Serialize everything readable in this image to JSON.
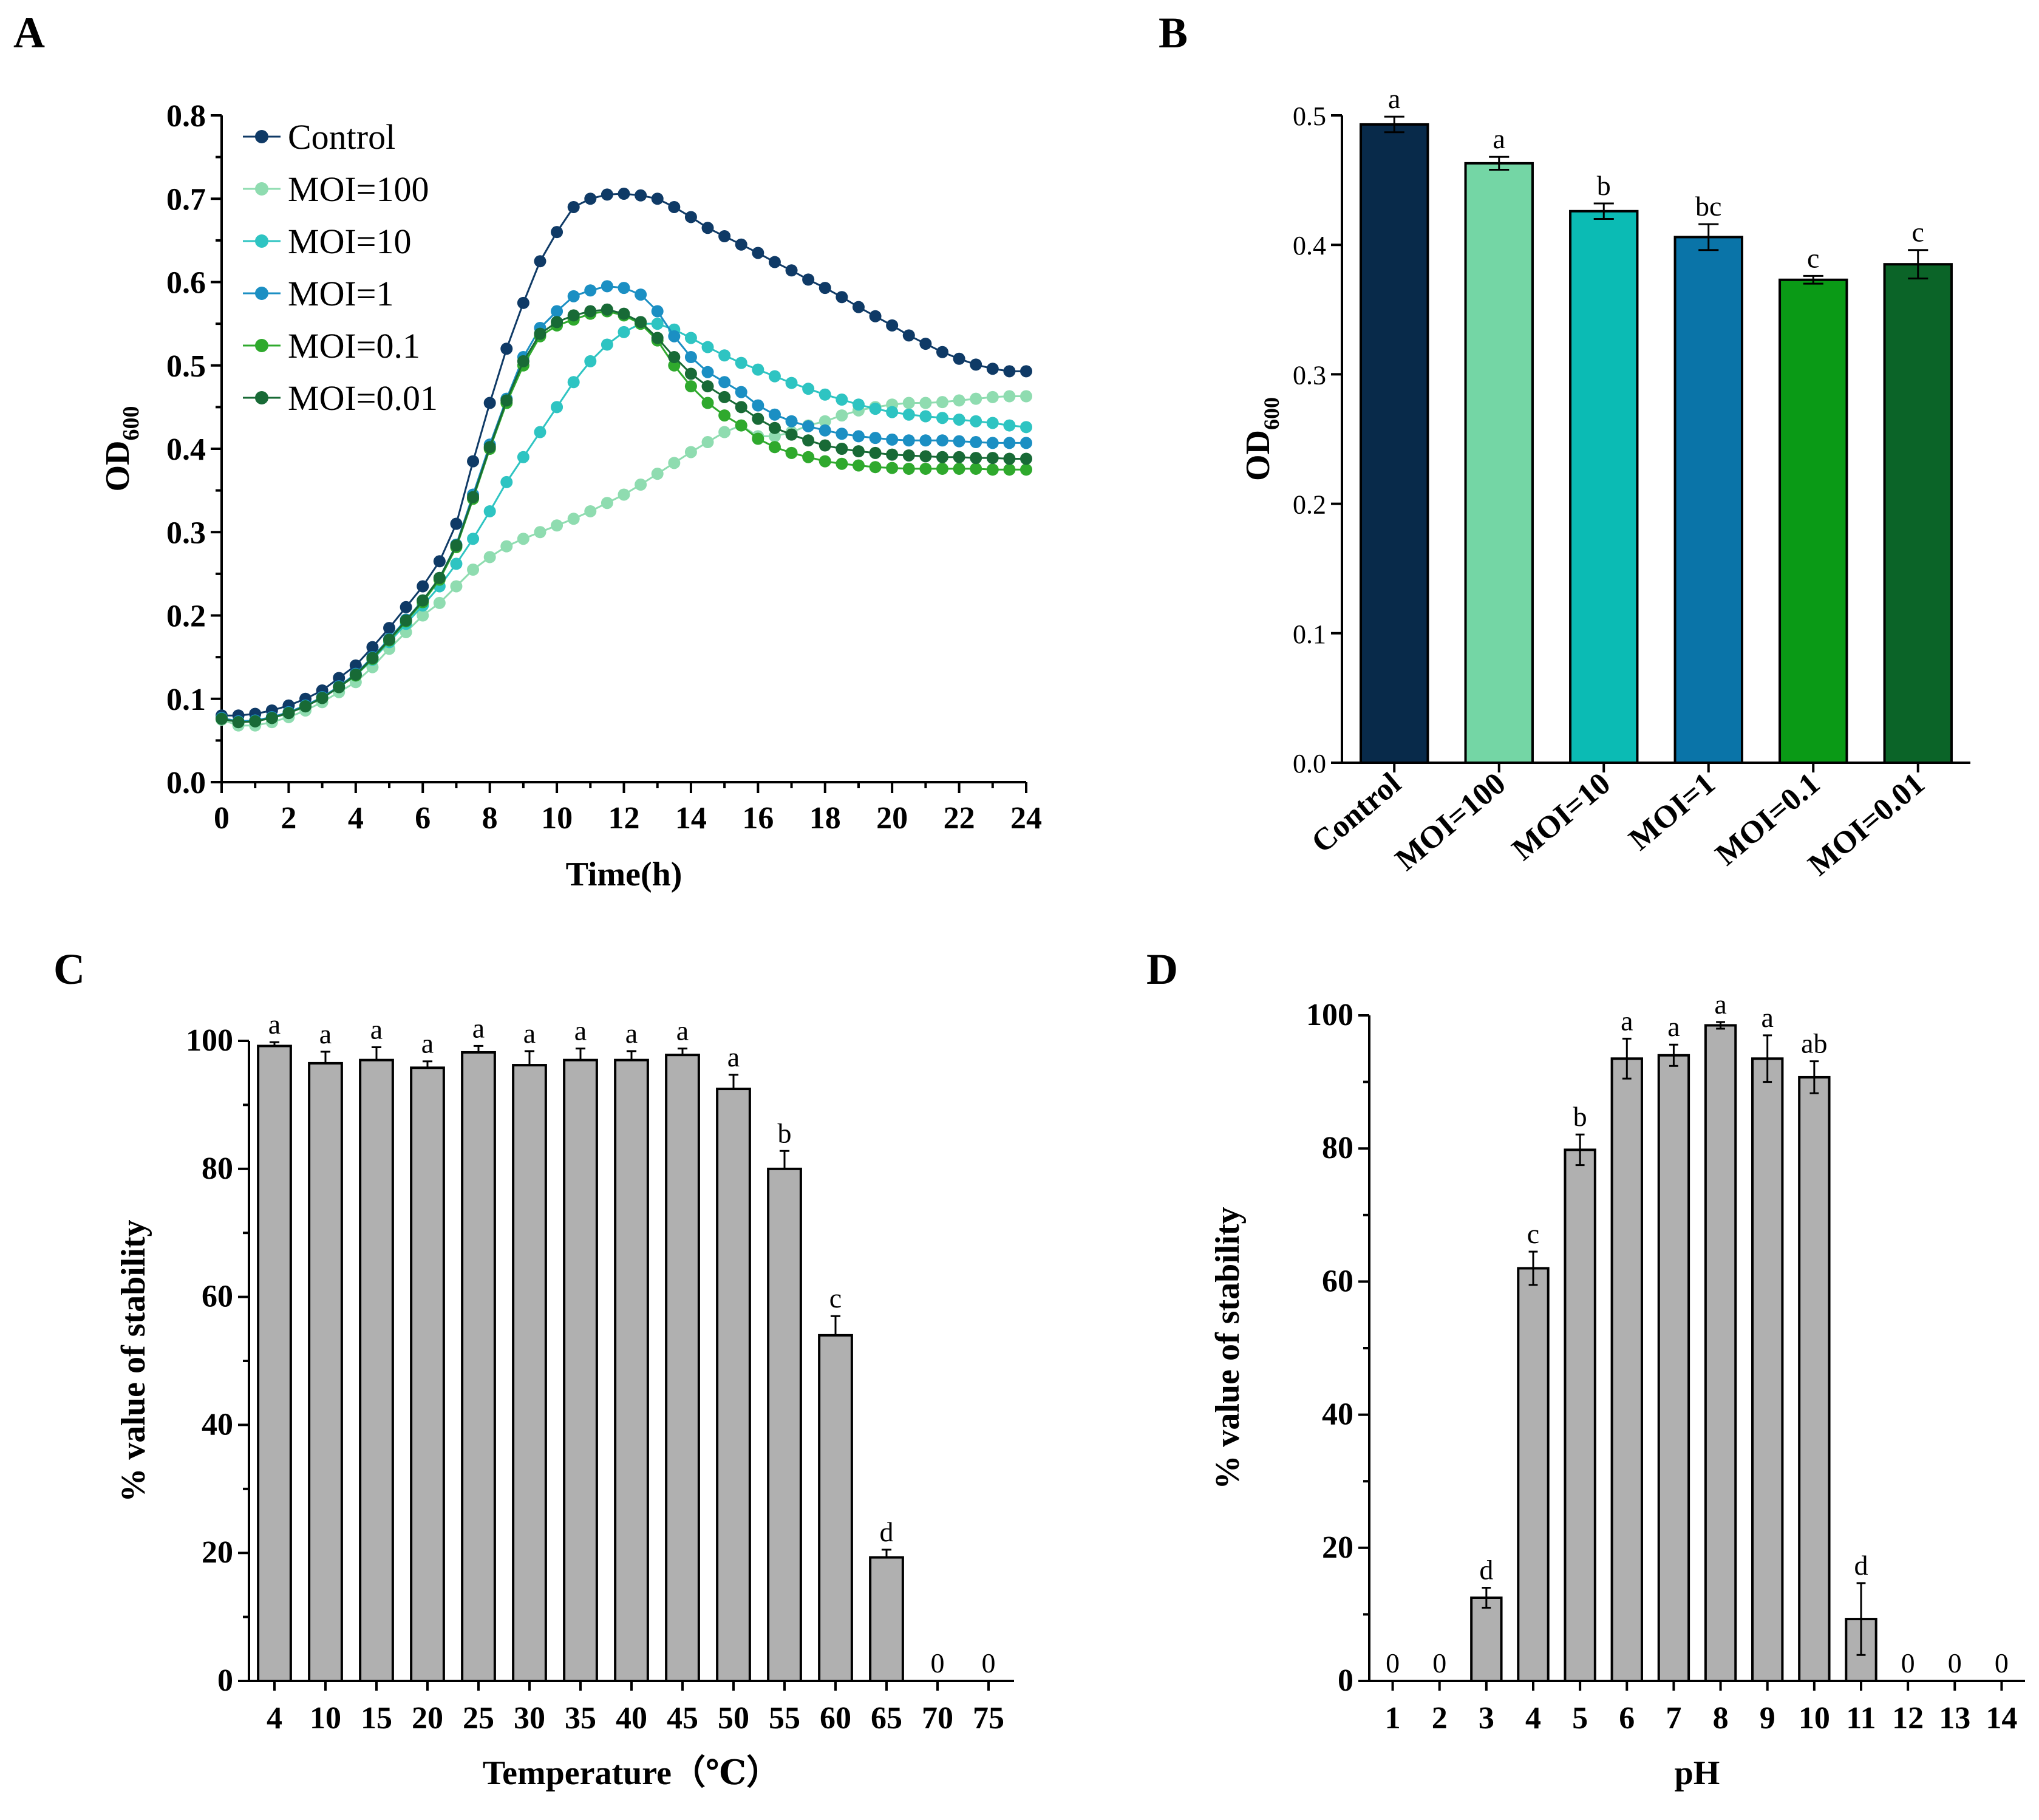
{
  "panels": [
    {
      "id": "A",
      "label": "A",
      "chart_data": {
        "type": "line",
        "title": "",
        "xlabel": "Time(h)",
        "ylabel": "OD",
        "ylabel_sub": "600",
        "xlim": [
          0,
          24
        ],
        "ylim": [
          0,
          0.8
        ],
        "xticks": [
          0,
          2,
          4,
          6,
          8,
          10,
          12,
          14,
          16,
          18,
          20,
          22,
          24
        ],
        "yticks": [
          "0.0",
          "0.1",
          "0.2",
          "0.3",
          "0.4",
          "0.5",
          "0.6",
          "0.7",
          "0.8"
        ],
        "legend_position": "top-left",
        "x": [
          0,
          0.5,
          1,
          1.5,
          2,
          2.5,
          3,
          3.5,
          4,
          4.5,
          5,
          5.5,
          6,
          6.5,
          7,
          7.5,
          8,
          8.5,
          9,
          9.5,
          10,
          10.5,
          11,
          11.5,
          12,
          12.5,
          13,
          13.5,
          14,
          14.5,
          15,
          15.5,
          16,
          16.5,
          17,
          17.5,
          18,
          18.5,
          19,
          19.5,
          20,
          20.5,
          21,
          21.5,
          22,
          22.5,
          23,
          23.5,
          24
        ],
        "series": [
          {
            "name": "Control",
            "color": "#0f3a66",
            "values": [
              0.08,
              0.08,
              0.082,
              0.086,
              0.092,
              0.1,
              0.11,
              0.125,
              0.14,
              0.162,
              0.185,
              0.21,
              0.235,
              0.265,
              0.31,
              0.385,
              0.455,
              0.52,
              0.575,
              0.625,
              0.66,
              0.69,
              0.7,
              0.705,
              0.706,
              0.704,
              0.7,
              0.69,
              0.678,
              0.665,
              0.655,
              0.645,
              0.635,
              0.624,
              0.614,
              0.603,
              0.593,
              0.582,
              0.57,
              0.559,
              0.548,
              0.536,
              0.526,
              0.516,
              0.508,
              0.501,
              0.496,
              0.493,
              0.493
            ]
          },
          {
            "name": "MOI=100",
            "color": "#8fdcb0",
            "values": [
              0.075,
              0.068,
              0.068,
              0.072,
              0.078,
              0.086,
              0.096,
              0.108,
              0.12,
              0.138,
              0.16,
              0.18,
              0.2,
              0.215,
              0.235,
              0.255,
              0.27,
              0.283,
              0.292,
              0.3,
              0.308,
              0.316,
              0.325,
              0.335,
              0.345,
              0.357,
              0.37,
              0.383,
              0.396,
              0.408,
              0.42,
              0.428,
              0.415,
              0.415,
              0.42,
              0.428,
              0.433,
              0.44,
              0.446,
              0.45,
              0.453,
              0.455,
              0.455,
              0.456,
              0.458,
              0.46,
              0.462,
              0.463,
              0.463
            ]
          },
          {
            "name": "MOI=10",
            "color": "#2ec4c2",
            "values": [
              0.077,
              0.072,
              0.073,
              0.077,
              0.083,
              0.091,
              0.101,
              0.114,
              0.128,
              0.147,
              0.168,
              0.19,
              0.212,
              0.235,
              0.262,
              0.292,
              0.325,
              0.36,
              0.39,
              0.42,
              0.45,
              0.48,
              0.505,
              0.525,
              0.54,
              0.55,
              0.55,
              0.543,
              0.533,
              0.522,
              0.512,
              0.503,
              0.495,
              0.487,
              0.479,
              0.472,
              0.465,
              0.459,
              0.453,
              0.448,
              0.444,
              0.441,
              0.439,
              0.437,
              0.435,
              0.433,
              0.431,
              0.428,
              0.426
            ]
          },
          {
            "name": "MOI=1",
            "color": "#1b8fc3",
            "values": [
              0.077,
              0.073,
              0.074,
              0.078,
              0.084,
              0.092,
              0.102,
              0.115,
              0.13,
              0.15,
              0.172,
              0.195,
              0.218,
              0.245,
              0.285,
              0.345,
              0.405,
              0.46,
              0.51,
              0.545,
              0.565,
              0.583,
              0.59,
              0.595,
              0.593,
              0.585,
              0.565,
              0.535,
              0.51,
              0.492,
              0.48,
              0.468,
              0.452,
              0.441,
              0.433,
              0.427,
              0.422,
              0.418,
              0.415,
              0.413,
              0.411,
              0.41,
              0.41,
              0.41,
              0.409,
              0.408,
              0.407,
              0.407,
              0.407
            ]
          },
          {
            "name": "MOI=0.1",
            "color": "#2fa92d",
            "values": [
              0.076,
              0.072,
              0.073,
              0.077,
              0.083,
              0.091,
              0.101,
              0.114,
              0.128,
              0.148,
              0.17,
              0.193,
              0.216,
              0.243,
              0.282,
              0.34,
              0.4,
              0.455,
              0.5,
              0.535,
              0.548,
              0.555,
              0.562,
              0.565,
              0.56,
              0.55,
              0.53,
              0.5,
              0.475,
              0.455,
              0.44,
              0.428,
              0.412,
              0.402,
              0.395,
              0.39,
              0.385,
              0.382,
              0.38,
              0.378,
              0.377,
              0.376,
              0.376,
              0.376,
              0.376,
              0.376,
              0.375,
              0.375,
              0.375
            ]
          },
          {
            "name": "MOI=0.01",
            "color": "#186a36",
            "values": [
              0.076,
              0.072,
              0.073,
              0.077,
              0.083,
              0.091,
              0.101,
              0.114,
              0.129,
              0.149,
              0.171,
              0.194,
              0.218,
              0.245,
              0.284,
              0.342,
              0.402,
              0.458,
              0.505,
              0.538,
              0.552,
              0.56,
              0.565,
              0.567,
              0.562,
              0.552,
              0.533,
              0.51,
              0.49,
              0.475,
              0.462,
              0.45,
              0.436,
              0.425,
              0.417,
              0.41,
              0.404,
              0.4,
              0.397,
              0.395,
              0.393,
              0.392,
              0.391,
              0.39,
              0.39,
              0.389,
              0.389,
              0.388,
              0.388
            ]
          }
        ]
      }
    },
    {
      "id": "B",
      "label": "B",
      "chart_data": {
        "type": "bar",
        "title": "",
        "xlabel": "",
        "ylabel": "OD",
        "ylabel_sub": "600",
        "ylim": [
          0,
          0.5
        ],
        "yticks": [
          "0.0",
          "0.1",
          "0.2",
          "0.3",
          "0.4",
          "0.5"
        ],
        "categories": [
          "Control",
          "MOI=100",
          "MOI=10",
          "MOI=1",
          "MOI=0.1",
          "MOI=0.01"
        ],
        "values": [
          0.493,
          0.463,
          0.426,
          0.406,
          0.373,
          0.385
        ],
        "errors": [
          0.006,
          0.005,
          0.006,
          0.01,
          0.003,
          0.011
        ],
        "sig_letters": [
          "a",
          "a",
          "b",
          "bc",
          "c",
          "c"
        ],
        "colors": [
          "#082a4a",
          "#74d6a5",
          "#0bbbb4",
          "#0a74a8",
          "#0a9a16",
          "#0b6428"
        ]
      }
    },
    {
      "id": "C",
      "label": "C",
      "chart_data": {
        "type": "bar",
        "title": "",
        "xlabel": "Temperature（℃）",
        "ylabel": "% value of stability",
        "ylim": [
          0,
          100
        ],
        "yticks": [
          "0",
          "20",
          "40",
          "60",
          "80",
          "100"
        ],
        "categories": [
          "4",
          "10",
          "15",
          "20",
          "25",
          "30",
          "35",
          "40",
          "45",
          "50",
          "55",
          "60",
          "65",
          "70",
          "75"
        ],
        "values": [
          99.2,
          96.5,
          97.0,
          95.8,
          98.2,
          96.2,
          97.0,
          97.0,
          97.8,
          92.5,
          80.0,
          54.0,
          19.3,
          0,
          0
        ],
        "errors": [
          0.6,
          1.8,
          2.0,
          1.0,
          1.0,
          2.2,
          1.8,
          1.4,
          1.0,
          2.2,
          2.8,
          3.0,
          1.2,
          0,
          0
        ],
        "sig_letters": [
          "a",
          "a",
          "a",
          "a",
          "a",
          "a",
          "a",
          "a",
          "a",
          "a",
          "b",
          "c",
          "d",
          "0",
          "0"
        ],
        "colors": [
          "#b0b0b0"
        ]
      }
    },
    {
      "id": "D",
      "label": "D",
      "chart_data": {
        "type": "bar",
        "title": "",
        "xlabel": "pH",
        "ylabel": "% value of stability",
        "ylim": [
          0,
          100
        ],
        "yticks": [
          "0",
          "20",
          "40",
          "60",
          "80",
          "100"
        ],
        "categories": [
          "1",
          "2",
          "3",
          "4",
          "5",
          "6",
          "7",
          "8",
          "9",
          "10",
          "11",
          "12",
          "13",
          "14"
        ],
        "values": [
          0,
          0,
          12.5,
          62.0,
          79.8,
          93.5,
          94.0,
          98.5,
          93.5,
          90.7,
          9.3,
          0,
          0,
          0
        ],
        "errors": [
          0,
          0,
          1.5,
          2.5,
          2.3,
          3.0,
          1.6,
          0.5,
          3.5,
          2.4,
          5.4,
          0,
          0,
          0
        ],
        "sig_letters": [
          "0",
          "0",
          "d",
          "c",
          "b",
          "a",
          "a",
          "a",
          "a",
          "ab",
          "d",
          "0",
          "0",
          "0"
        ],
        "colors": [
          "#b0b0b0"
        ]
      }
    }
  ]
}
